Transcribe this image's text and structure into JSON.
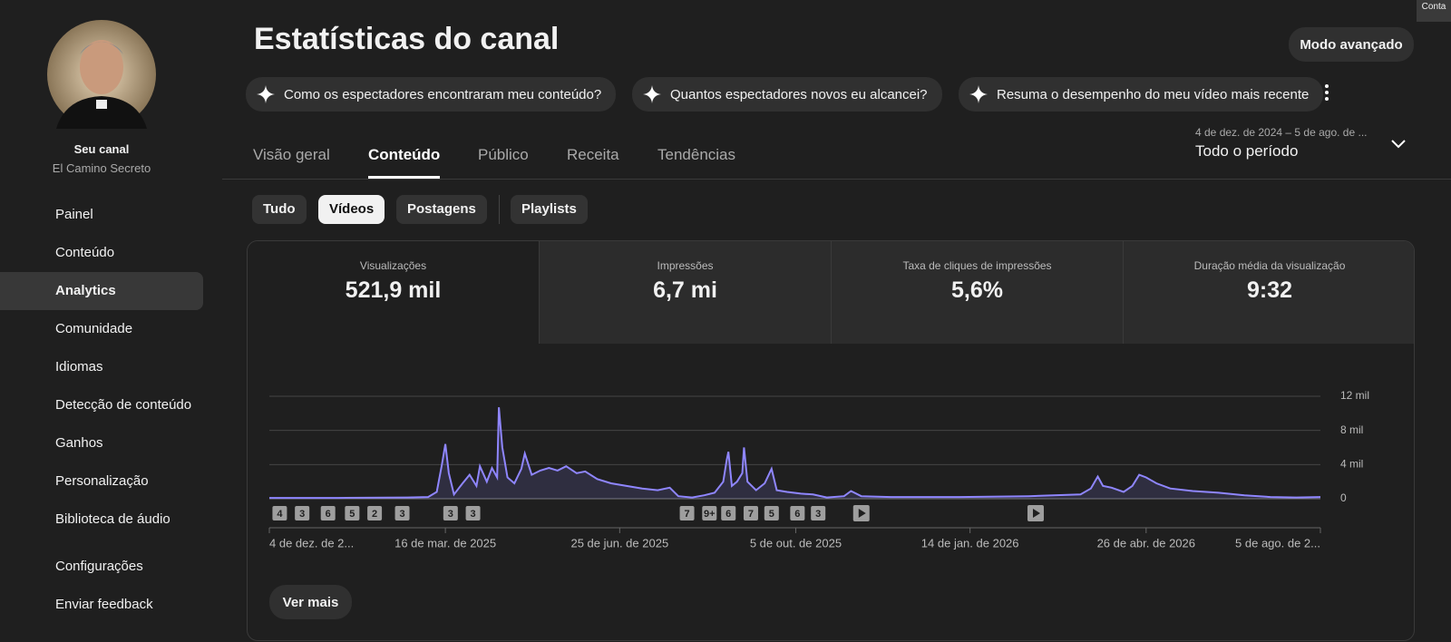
{
  "account_badge": "Conta",
  "sidebar": {
    "channel_label": "Seu canal",
    "channel_name": "El Camino Secreto",
    "items": [
      "Painel",
      "Conteúdo",
      "Analytics",
      "Comunidade",
      "Idiomas",
      "Detecção de conteúdo",
      "Ganhos",
      "Personalização",
      "Biblioteca de áudio"
    ],
    "active_index": 2,
    "footer_items": [
      "Configurações",
      "Enviar feedback"
    ]
  },
  "header": {
    "title": "Estatísticas do canal",
    "advanced_button": "Modo avançado"
  },
  "suggestions": [
    "Como os espectadores encontraram meu conteúdo?",
    "Quantos espectadores novos eu alcancei?",
    "Resuma o desempenho do meu vídeo mais recente"
  ],
  "tabs": {
    "items": [
      "Visão geral",
      "Conteúdo",
      "Público",
      "Receita",
      "Tendências"
    ],
    "active_index": 1
  },
  "date_range": {
    "range": "4 de dez. de 2024 – 5 de ago. de ...",
    "period": "Todo o período"
  },
  "filters": {
    "items": [
      "Tudo",
      "Vídeos",
      "Postagens",
      "Playlists"
    ],
    "active_index": 1
  },
  "metrics": [
    {
      "label": "Visualizações",
      "value": "521,9 mil"
    },
    {
      "label": "Impressões",
      "value": "6,7 mi"
    },
    {
      "label": "Taxa de cliques de impressões",
      "value": "5,6%"
    },
    {
      "label": "Duração média da visualização",
      "value": "9:32"
    }
  ],
  "chart_data": {
    "type": "line",
    "color": "#8f86ff",
    "x": [
      0,
      40,
      80,
      92,
      97,
      100,
      102,
      104,
      107,
      112,
      116,
      120,
      122,
      126,
      129,
      132,
      133,
      135,
      138,
      142,
      146,
      148,
      152,
      157,
      162,
      167,
      172,
      178,
      183,
      190,
      198,
      207,
      216,
      225,
      232,
      237,
      245,
      252,
      258,
      263,
      265,
      266,
      268,
      271,
      274,
      275,
      277,
      282,
      287,
      291,
      294,
      300,
      308,
      315,
      323,
      333,
      337,
      343,
      360,
      400,
      440,
      470,
      476,
      480,
      483,
      488,
      495,
      500,
      504,
      508,
      514,
      522,
      535,
      550,
      565,
      580,
      595,
      609
    ],
    "values": [
      100,
      100,
      150,
      200,
      800,
      4000,
      6400,
      3000,
      500,
      1800,
      2800,
      1500,
      3800,
      2000,
      3600,
      2500,
      10700,
      6000,
      2500,
      1800,
      3500,
      5300,
      2800,
      3300,
      3600,
      3300,
      3800,
      3000,
      3200,
      2300,
      1800,
      1500,
      1200,
      1000,
      1300,
      300,
      150,
      400,
      700,
      2000,
      4500,
      5500,
      1500,
      2000,
      3000,
      6000,
      2000,
      1000,
      1800,
      3500,
      1000,
      800,
      600,
      500,
      150,
      300,
      900,
      300,
      200,
      200,
      300,
      500,
      1200,
      2600,
      1500,
      1300,
      800,
      1500,
      2800,
      2500,
      1800,
      1200,
      900,
      700,
      400,
      200,
      150,
      200
    ],
    "xlim": [
      0,
      609
    ],
    "xticks": [
      {
        "value": 0,
        "label": "4 de dez. de 2..."
      },
      {
        "value": 102,
        "label": "16 de mar. de 2025"
      },
      {
        "value": 203,
        "label": "25 de jun. de 2025"
      },
      {
        "value": 305,
        "label": "5 de out. de 2025"
      },
      {
        "value": 406,
        "label": "14 de jan. de 2026"
      },
      {
        "value": 508,
        "label": "26 de abr. de 2026"
      },
      {
        "value": 609,
        "label": "5 de ago. de 2..."
      }
    ],
    "ylim": [
      0,
      12000
    ],
    "yticks": [
      0,
      {
        "value": 4000,
        "label": "4 mil"
      },
      {
        "value": 8000,
        "label": "8 mil"
      },
      {
        "value": 12000,
        "label": "12 mil"
      }
    ],
    "grid": true,
    "video_markers": [
      {
        "x": 6,
        "label": "4"
      },
      {
        "x": 19,
        "label": "3"
      },
      {
        "x": 34,
        "label": "6"
      },
      {
        "x": 48,
        "label": "5"
      },
      {
        "x": 61,
        "label": "2"
      },
      {
        "x": 77,
        "label": "3"
      },
      {
        "x": 105,
        "label": "3"
      },
      {
        "x": 118,
        "label": "3"
      },
      {
        "x": 242,
        "label": "7"
      },
      {
        "x": 255,
        "label": "9+"
      },
      {
        "x": 266,
        "label": "6"
      },
      {
        "x": 279,
        "label": "7"
      },
      {
        "x": 291,
        "label": "5"
      },
      {
        "x": 306,
        "label": "6"
      },
      {
        "x": 318,
        "label": "3"
      }
    ],
    "single_video_markers": [
      343,
      444
    ]
  },
  "more_button": "Ver mais"
}
